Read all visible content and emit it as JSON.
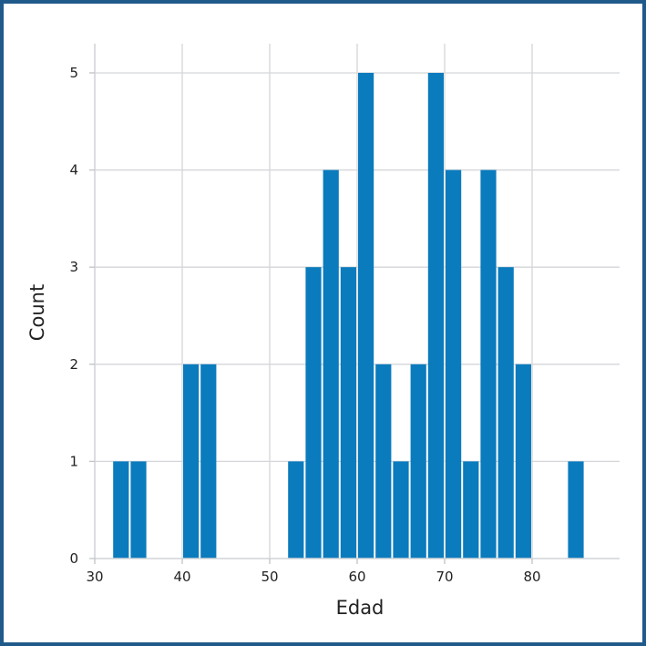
{
  "chart_data": {
    "type": "bar",
    "title": "",
    "xlabel": "Edad",
    "ylabel": "Count",
    "xlim": [
      30,
      90
    ],
    "ylim": [
      0,
      5.3
    ],
    "xticks": [
      30,
      40,
      50,
      60,
      70,
      80
    ],
    "yticks": [
      0,
      1,
      2,
      3,
      4,
      5
    ],
    "bin_width": 2,
    "bins": [
      {
        "x0": 32,
        "count": 1
      },
      {
        "x0": 34,
        "count": 1
      },
      {
        "x0": 40,
        "count": 2
      },
      {
        "x0": 42,
        "count": 2
      },
      {
        "x0": 52,
        "count": 1
      },
      {
        "x0": 54,
        "count": 3
      },
      {
        "x0": 56,
        "count": 4
      },
      {
        "x0": 58,
        "count": 3
      },
      {
        "x0": 60,
        "count": 5
      },
      {
        "x0": 62,
        "count": 2
      },
      {
        "x0": 64,
        "count": 1
      },
      {
        "x0": 66,
        "count": 2
      },
      {
        "x0": 68,
        "count": 5
      },
      {
        "x0": 70,
        "count": 4
      },
      {
        "x0": 72,
        "count": 1
      },
      {
        "x0": 74,
        "count": 4
      },
      {
        "x0": 76,
        "count": 3
      },
      {
        "x0": 78,
        "count": 2
      },
      {
        "x0": 84,
        "count": 1
      }
    ],
    "grid": true,
    "colors": {
      "bar": "#0a7bbd",
      "grid": "#d4d6d9",
      "frame": "#1f5a8a"
    }
  }
}
